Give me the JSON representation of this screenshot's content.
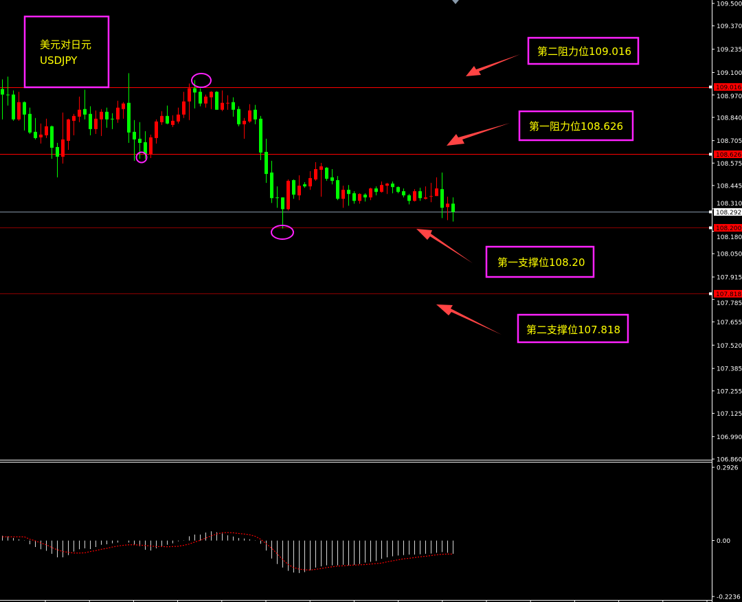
{
  "chart_data": {
    "type": "candlestick",
    "symbol_box": {
      "line1": "美元对日元",
      "line2": "USDJPY"
    },
    "price_axis": {
      "range": [
        106.86,
        109.5
      ],
      "ticks": [
        "109.500",
        "109.370",
        "109.235",
        "109.100",
        "108.970",
        "108.840",
        "108.705",
        "108.575",
        "108.445",
        "108.310",
        "108.180",
        "108.050",
        "107.915",
        "107.785",
        "107.655",
        "107.520",
        "107.385",
        "107.255",
        "107.125",
        "106.990",
        "106.860"
      ]
    },
    "levels": [
      {
        "label": "第二阻力位109.016",
        "price": 109.016,
        "tag": "109.016",
        "color": "#ff0000"
      },
      {
        "label": "第一阻力位108.626",
        "price": 108.626,
        "tag": "108.626",
        "color": "#ff0000"
      },
      {
        "label": "第一支撑位108.20",
        "price": 108.2,
        "tag": "108.200",
        "color": "#ff0000"
      },
      {
        "label": "第二支撑位107.818",
        "price": 107.818,
        "tag": "107.818",
        "color": "#ff0000"
      }
    ],
    "current_price": {
      "price": 108.292,
      "tag": "108.292",
      "color": "#8899aa"
    },
    "colors": {
      "bull": "#ff0000",
      "bear": "#00ff00",
      "annotation_box": "#ff22ff",
      "annotation_text": "#ffff00",
      "arrow": "#ff4444",
      "macd_hist": "#ffffff",
      "macd_signal": "#ff0000"
    },
    "ohlc": [
      [
        109.004,
        109.06,
        108.828,
        108.972
      ],
      [
        108.972,
        109.076,
        108.908,
        108.968
      ],
      [
        108.972,
        108.996,
        108.82,
        108.828
      ],
      [
        108.828,
        108.988,
        108.82,
        108.928
      ],
      [
        108.928,
        108.932,
        108.764,
        108.856
      ],
      [
        108.86,
        108.896,
        108.744,
        108.752
      ],
      [
        108.756,
        108.836,
        108.712,
        108.72
      ],
      [
        108.724,
        108.804,
        108.688,
        108.74
      ],
      [
        108.736,
        108.832,
        108.72,
        108.788
      ],
      [
        108.788,
        108.792,
        108.6,
        108.664
      ],
      [
        108.668,
        108.692,
        108.492,
        108.612
      ],
      [
        108.612,
        108.868,
        108.572,
        108.712
      ],
      [
        108.704,
        108.832,
        108.652,
        108.828
      ],
      [
        108.82,
        108.86,
        108.736,
        108.848
      ],
      [
        108.844,
        108.96,
        108.812,
        108.884
      ],
      [
        108.888,
        109.0,
        108.828,
        108.856
      ],
      [
        108.86,
        108.904,
        108.736,
        108.772
      ],
      [
        108.772,
        108.88,
        108.744,
        108.832
      ],
      [
        108.828,
        108.888,
        108.732,
        108.872
      ],
      [
        108.872,
        108.896,
        108.78,
        108.828
      ],
      [
        108.832,
        108.864,
        108.772,
        108.828
      ],
      [
        108.828,
        108.936,
        108.808,
        108.896
      ],
      [
        108.888,
        108.928,
        108.832,
        108.92
      ],
      [
        108.924,
        109.096,
        108.692,
        108.752
      ],
      [
        108.756,
        108.824,
        108.588,
        108.712
      ],
      [
        108.716,
        108.812,
        108.6,
        108.692
      ],
      [
        108.696,
        108.76,
        108.6,
        108.628
      ],
      [
        108.628,
        108.74,
        108.604,
        108.724
      ],
      [
        108.72,
        108.828,
        108.688,
        108.816
      ],
      [
        108.812,
        108.876,
        108.796,
        108.848
      ],
      [
        108.848,
        108.908,
        108.8,
        108.804
      ],
      [
        108.796,
        108.852,
        108.784,
        108.82
      ],
      [
        108.816,
        108.896,
        108.804,
        108.856
      ],
      [
        108.856,
        108.988,
        108.836,
        108.932
      ],
      [
        108.932,
        109.036,
        108.824,
        109.008
      ],
      [
        109.008,
        109.056,
        108.892,
        108.984
      ],
      [
        108.988,
        109.008,
        108.904,
        108.92
      ],
      [
        108.92,
        108.972,
        108.896,
        108.96
      ],
      [
        108.956,
        108.992,
        108.888,
        108.988
      ],
      [
        108.988,
        108.992,
        108.884,
        108.884
      ],
      [
        108.884,
        108.996,
        108.876,
        108.924
      ],
      [
        108.922,
        108.968,
        108.884,
        108.924
      ],
      [
        108.928,
        108.956,
        108.844,
        108.884
      ],
      [
        108.888,
        108.904,
        108.788,
        108.8
      ],
      [
        108.8,
        108.836,
        108.716,
        108.82
      ],
      [
        108.816,
        108.916,
        108.808,
        108.88
      ],
      [
        108.884,
        108.912,
        108.8,
        108.828
      ],
      [
        108.832,
        108.848,
        108.592,
        108.636
      ],
      [
        108.64,
        108.716,
        108.46,
        108.512
      ],
      [
        108.52,
        108.588,
        108.344,
        108.372
      ],
      [
        108.376,
        108.44,
        108.316,
        108.372
      ],
      [
        108.376,
        108.376,
        108.196,
        108.308
      ],
      [
        108.308,
        108.48,
        108.3,
        108.472
      ],
      [
        108.476,
        108.48,
        108.368,
        108.392
      ],
      [
        108.388,
        108.504,
        108.36,
        108.444
      ],
      [
        108.452,
        108.464,
        108.432,
        108.44
      ],
      [
        108.44,
        108.528,
        108.42,
        108.488
      ],
      [
        108.48,
        108.58,
        108.472,
        108.54
      ],
      [
        108.536,
        108.576,
        108.38,
        108.556
      ],
      [
        108.548,
        108.552,
        108.472,
        108.484
      ],
      [
        108.492,
        108.54,
        108.452,
        108.472
      ],
      [
        108.476,
        108.5,
        108.36,
        108.368
      ],
      [
        108.368,
        108.444,
        108.316,
        108.42
      ],
      [
        108.42,
        108.448,
        108.328,
        108.396
      ],
      [
        108.4,
        108.412,
        108.34,
        108.356
      ],
      [
        108.356,
        108.4,
        108.34,
        108.396
      ],
      [
        108.392,
        108.4,
        108.352,
        108.376
      ],
      [
        108.376,
        108.432,
        108.36,
        108.428
      ],
      [
        108.428,
        108.44,
        108.388,
        108.408
      ],
      [
        108.408,
        108.468,
        108.404,
        108.448
      ],
      [
        108.444,
        108.46,
        108.396,
        108.456
      ],
      [
        108.456,
        108.468,
        108.4,
        108.436
      ],
      [
        108.436,
        108.44,
        108.4,
        108.408
      ],
      [
        108.412,
        108.428,
        108.376,
        108.388
      ],
      [
        108.388,
        108.396,
        108.336,
        108.356
      ],
      [
        108.356,
        108.424,
        108.352,
        108.412
      ],
      [
        108.412,
        108.432,
        108.356,
        108.372
      ],
      [
        108.368,
        108.44,
        108.364,
        108.376
      ],
      [
        108.38,
        108.46,
        108.348,
        108.384
      ],
      [
        108.384,
        108.492,
        108.384,
        108.428
      ],
      [
        108.424,
        108.52,
        108.256,
        108.316
      ],
      [
        108.32,
        108.38,
        108.244,
        108.34
      ],
      [
        108.34,
        108.376,
        108.236,
        108.292
      ]
    ],
    "macd": {
      "range": [
        -0.2236,
        0.2926
      ],
      "ticks": [
        "0.2926",
        "0.00",
        "-0.2236"
      ],
      "histogram": [
        0.019,
        0.017,
        0.01,
        0.005,
        0.001,
        -0.015,
        -0.026,
        -0.035,
        -0.041,
        -0.053,
        -0.067,
        -0.067,
        -0.058,
        -0.044,
        -0.035,
        -0.031,
        -0.034,
        -0.026,
        -0.017,
        -0.015,
        -0.011,
        -0.008,
        0.0,
        -0.008,
        -0.017,
        -0.022,
        -0.037,
        -0.04,
        -0.031,
        -0.022,
        -0.017,
        -0.011,
        -0.003,
        0.001,
        0.017,
        0.024,
        0.024,
        0.032,
        0.037,
        0.033,
        0.028,
        0.021,
        0.016,
        0.01,
        0.008,
        0.005,
        0.001,
        -0.013,
        -0.04,
        -0.072,
        -0.094,
        -0.108,
        -0.121,
        -0.128,
        -0.13,
        -0.126,
        -0.119,
        -0.108,
        -0.103,
        -0.099,
        -0.099,
        -0.099,
        -0.097,
        -0.099,
        -0.097,
        -0.094,
        -0.088,
        -0.085,
        -0.082,
        -0.073,
        -0.067,
        -0.063,
        -0.06,
        -0.058,
        -0.056,
        -0.056,
        -0.055,
        -0.053,
        -0.052,
        -0.049,
        -0.046,
        -0.049,
        -0.053
      ],
      "signal": [
        0.015,
        0.015,
        0.015,
        0.015,
        0.015,
        0.005,
        -0.001,
        -0.01,
        -0.017,
        -0.028,
        -0.037,
        -0.044,
        -0.047,
        -0.05,
        -0.05,
        -0.049,
        -0.044,
        -0.04,
        -0.035,
        -0.031,
        -0.026,
        -0.022,
        -0.019,
        -0.017,
        -0.017,
        -0.018,
        -0.02,
        -0.022,
        -0.024,
        -0.024,
        -0.025,
        -0.024,
        -0.023,
        -0.019,
        -0.014,
        -0.006,
        0.001,
        0.01,
        0.019,
        0.026,
        0.031,
        0.032,
        0.031,
        0.028,
        0.026,
        0.023,
        0.017,
        0.005,
        -0.013,
        -0.031,
        -0.053,
        -0.076,
        -0.096,
        -0.108,
        -0.114,
        -0.117,
        -0.118,
        -0.115,
        -0.112,
        -0.108,
        -0.105,
        -0.102,
        -0.101,
        -0.099,
        -0.098,
        -0.097,
        -0.096,
        -0.094,
        -0.092,
        -0.09,
        -0.085,
        -0.081,
        -0.077,
        -0.073,
        -0.071,
        -0.068,
        -0.065,
        -0.063,
        -0.06,
        -0.057,
        -0.055,
        -0.054,
        -0.054
      ]
    }
  }
}
